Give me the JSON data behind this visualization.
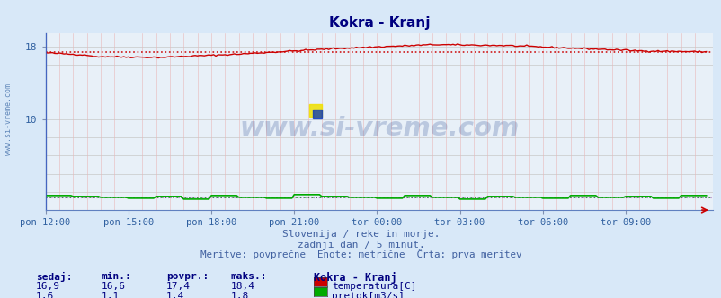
{
  "title": "Kokra - Kranj",
  "title_color": "#000080",
  "bg_color": "#d8e8f8",
  "plot_bg_color": "#e8f0f8",
  "grid_color_h": "#c8c8c8",
  "grid_color_v": "#e8b8b8",
  "x_tick_labels": [
    "pon 12:00",
    "pon 15:00",
    "pon 18:00",
    "pon 21:00",
    "tor 00:00",
    "tor 03:00",
    "tor 06:00",
    "tor 09:00"
  ],
  "x_tick_positions": [
    0,
    36,
    72,
    108,
    144,
    180,
    216,
    252
  ],
  "y_lim": [
    0,
    19.5
  ],
  "x_lim": [
    0,
    290
  ],
  "temp_color": "#cc0000",
  "flow_color": "#00aa00",
  "purple_color": "#8800aa",
  "temp_avg": 17.4,
  "flow_avg": 1.4,
  "watermark_text": "www.si-vreme.com",
  "watermark_color": "#1a3a8a",
  "subtitle1": "Slovenija / reke in morje.",
  "subtitle2": "zadnji dan / 5 minut.",
  "subtitle3": "Meritve: povprečne  Enote: metrične  Črta: prva meritev",
  "subtitle_color": "#4060a0",
  "label_color": "#000080",
  "tick_color": "#3060a0",
  "stat_headers": [
    "sedaj:",
    "min.:",
    "povpr.:",
    "maks.:"
  ],
  "stat_temp": [
    "16,9",
    "16,6",
    "17,4",
    "18,4"
  ],
  "stat_flow": [
    "1,6",
    "1,1",
    "1,4",
    "1,8"
  ],
  "legend_title": "Kokra - Kranj",
  "legend_temp_label": "temperatura[C]",
  "legend_flow_label": "pretok[m3/s]",
  "n_points": 288,
  "left_label": "www.si-vreme.com"
}
